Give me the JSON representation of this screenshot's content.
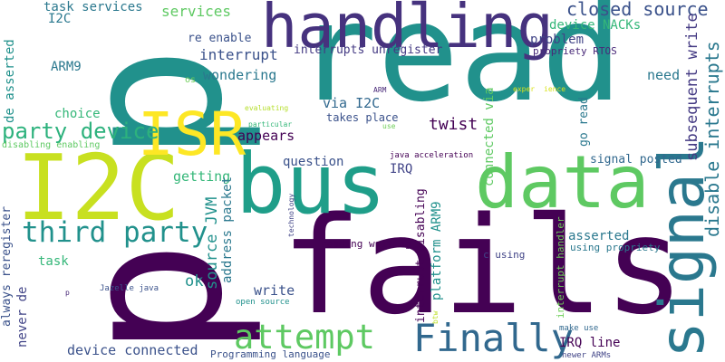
{
  "palette": {
    "dark_purple": "#440154",
    "indigo": "#3b528b",
    "teal": "#21918c",
    "green": "#5ec962",
    "yellow": "#fde725"
  },
  "words": [
    {
      "text": "read",
      "color": "#21918c"
    },
    {
      "text": "fails",
      "color": "#440154"
    },
    {
      "text": "p",
      "color": "#21918c"
    },
    {
      "text": "p",
      "color": "#440154"
    },
    {
      "text": "handling",
      "color": "#46327e"
    },
    {
      "text": "bus",
      "color": "#1f9e89"
    },
    {
      "text": "data",
      "color": "#5ec962"
    },
    {
      "text": "I2C",
      "color": "#c8e020"
    },
    {
      "text": "ISR",
      "color": "#fde725"
    },
    {
      "text": "signal",
      "color": "#2a788e"
    },
    {
      "text": "third party",
      "color": "#21918c"
    },
    {
      "text": "Finally",
      "color": "#31688e"
    },
    {
      "text": "attempt",
      "color": "#5ec962"
    },
    {
      "text": "party device",
      "color": "#2db27d"
    },
    {
      "text": "closed source",
      "color": "#3b528b"
    },
    {
      "text": "disable interrupts",
      "color": "#2a788e"
    },
    {
      "text": "subsequent write",
      "color": "#443a83"
    },
    {
      "text": "task services",
      "color": "#2a788e"
    },
    {
      "text": "services",
      "color": "#5ec962"
    },
    {
      "text": "I2C",
      "color": "#2a788e"
    },
    {
      "text": "re enable",
      "color": "#3b528b"
    },
    {
      "text": "device NACKs",
      "color": "#35b779"
    },
    {
      "text": "interrupts unregister",
      "color": "#443a83"
    },
    {
      "text": "problem",
      "color": "#414487"
    },
    {
      "text": "need",
      "color": "#2a788e"
    },
    {
      "text": "propriety RTOS",
      "color": "#482878"
    },
    {
      "text": "interrupt",
      "color": "#3b528b"
    },
    {
      "text": "wondering",
      "color": "#2a788e"
    },
    {
      "text": "ARM9",
      "color": "#2a788e"
    },
    {
      "text": "os",
      "color": "#6ece58"
    },
    {
      "text": "de asserted",
      "color": "#21918c"
    },
    {
      "text": "choice",
      "color": "#35b779"
    },
    {
      "text": "evaluating",
      "color": "#b5de2b"
    },
    {
      "text": "ARM",
      "color": "#482878"
    },
    {
      "text": "use",
      "color": "#6ece58"
    },
    {
      "text": "takes place",
      "color": "#3b528b"
    },
    {
      "text": "via I2C",
      "color": "#31688e"
    },
    {
      "text": "twist",
      "color": "#440154"
    },
    {
      "text": "connected via",
      "color": "#5ec962"
    },
    {
      "text": "go read",
      "color": "#2a788e"
    },
    {
      "text": "exper",
      "color": "#d8e219"
    },
    {
      "text": "ience",
      "color": "#d8e219"
    },
    {
      "text": "particular",
      "color": "#35b779"
    },
    {
      "text": "appears",
      "color": "#440154"
    },
    {
      "text": "disabling enabling",
      "color": "#5ec962"
    },
    {
      "text": "question",
      "color": "#3b528b"
    },
    {
      "text": "java acceleration",
      "color": "#440154"
    },
    {
      "text": "IRQ",
      "color": "#414487"
    },
    {
      "text": "signal posted",
      "color": "#31688e"
    },
    {
      "text": "getting",
      "color": "#35b779"
    },
    {
      "text": "address packet",
      "color": "#2a788e"
    },
    {
      "text": "source JVM",
      "color": "#21918c"
    },
    {
      "text": "technology",
      "color": "#414487"
    },
    {
      "text": "platform ARM9",
      "color": "#21918c"
    },
    {
      "text": "interrupt disabling",
      "color": "#440154"
    },
    {
      "text": "interrupt handler",
      "color": "#6ece58"
    },
    {
      "text": "asserted",
      "color": "#2a788e"
    },
    {
      "text": "always reregister",
      "color": "#3b528b"
    },
    {
      "text": "never de",
      "color": "#414487"
    },
    {
      "text": "task",
      "color": "#35b779"
    },
    {
      "text": "reading writing",
      "color": "#440154"
    },
    {
      "text": "c using",
      "color": "#414487"
    },
    {
      "text": "using propriety",
      "color": "#2a788e"
    },
    {
      "text": "ok",
      "color": "#21918c"
    },
    {
      "text": "write",
      "color": "#3b528b"
    },
    {
      "text": "p",
      "color": "#482878"
    },
    {
      "text": "Jazelle java",
      "color": "#3b528b"
    },
    {
      "text": "open source",
      "color": "#21918c"
    },
    {
      "text": "btw",
      "color": "#bddf26"
    },
    {
      "text": "make use",
      "color": "#31688e"
    },
    {
      "text": "IRQ line",
      "color": "#440154"
    },
    {
      "text": "device connected",
      "color": "#3b528b"
    },
    {
      "text": "Programming language",
      "color": "#3b528b"
    },
    {
      "text": "newer ARMs",
      "color": "#414487"
    }
  ]
}
